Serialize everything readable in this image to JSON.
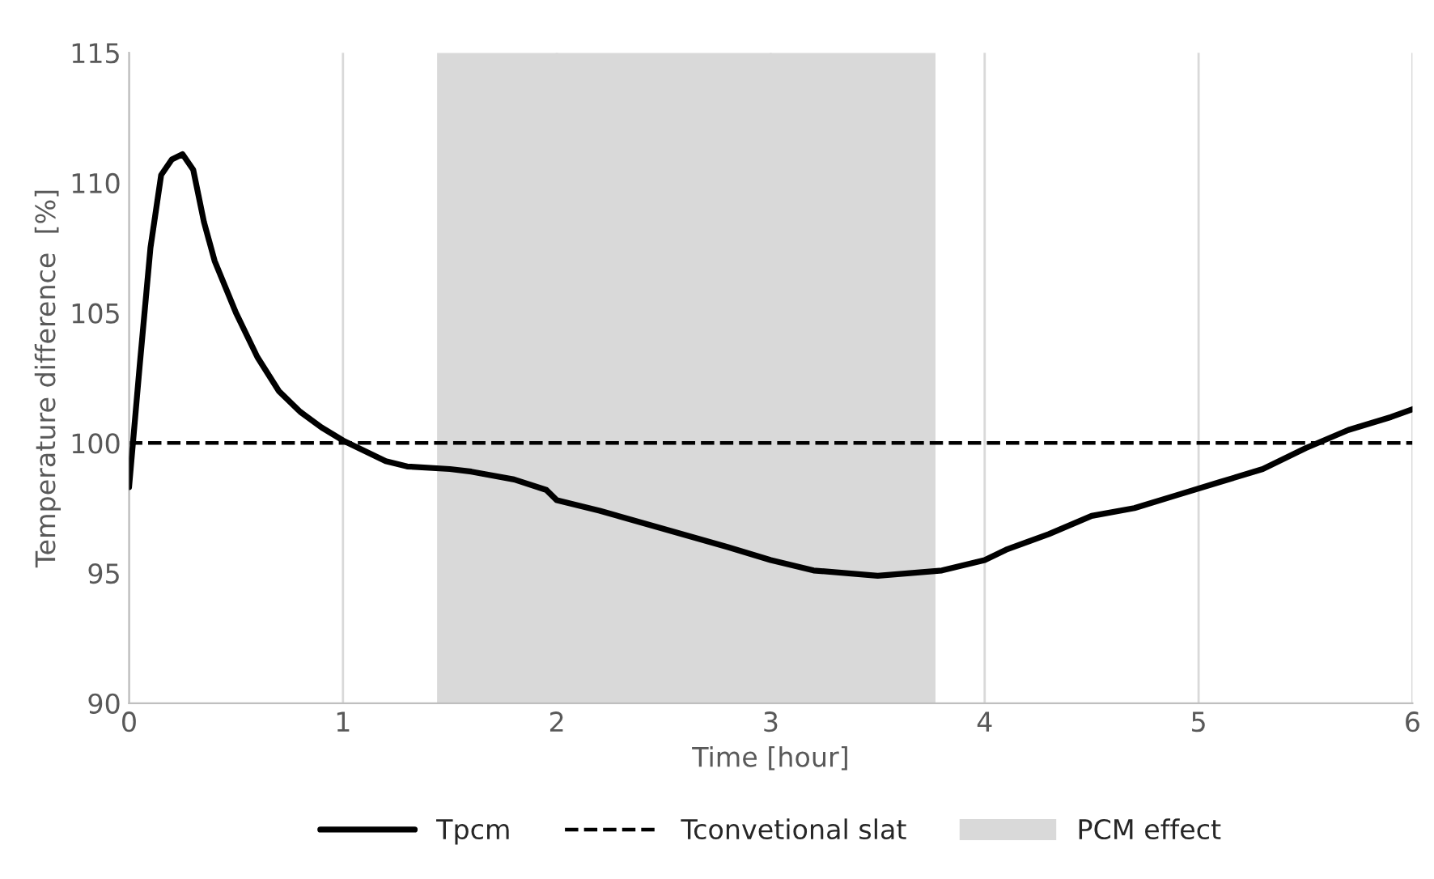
{
  "chart_data": {
    "type": "line",
    "xlabel": "Time [hour]",
    "ylabel": "Temperature difference  [%]",
    "xlim": [
      0,
      6
    ],
    "xticks": [
      0,
      1,
      2,
      3,
      4,
      5,
      6
    ],
    "ylim": [
      90,
      115
    ],
    "yticks": [
      90,
      95,
      100,
      105,
      110,
      115
    ],
    "grid": "x",
    "legend": "bottom",
    "line_style": "solid",
    "marker": "none",
    "series": [
      {
        "name": "Tpcm",
        "color": "#000000",
        "x": [
          0,
          0.05,
          0.1,
          0.15,
          0.2,
          0.25,
          0.3,
          0.35,
          0.4,
          0.5,
          0.6,
          0.7,
          0.8,
          0.9,
          1.0,
          1.1,
          1.2,
          1.3,
          1.5,
          1.6,
          1.8,
          1.95,
          2.0,
          2.2,
          2.5,
          2.8,
          3.0,
          3.2,
          3.5,
          3.8,
          4.0,
          4.1,
          4.3,
          4.5,
          4.7,
          4.9,
          5.1,
          5.3,
          5.5,
          5.7,
          5.9,
          6.0
        ],
        "values": [
          98.3,
          103,
          107.5,
          110.3,
          110.9,
          111.1,
          110.5,
          108.5,
          107,
          105,
          103.3,
          102,
          101.2,
          100.6,
          100.1,
          99.7,
          99.3,
          99.1,
          99.0,
          98.9,
          98.6,
          98.2,
          97.8,
          97.4,
          96.7,
          96.0,
          95.5,
          95.1,
          94.9,
          95.1,
          95.5,
          95.9,
          96.5,
          97.2,
          97.5,
          98.0,
          98.5,
          99.0,
          99.8,
          100.5,
          101.0,
          101.3
        ]
      }
    ],
    "ref_lines": [
      {
        "axis": "y",
        "value": 100,
        "label": "Tconvetional slat",
        "color": "#000000",
        "line_style": "dashed"
      }
    ],
    "bands": [
      {
        "axis": "x",
        "from": 1.44,
        "to": 3.77,
        "label": "PCM effect",
        "color": "#d9d9d9"
      }
    ]
  }
}
